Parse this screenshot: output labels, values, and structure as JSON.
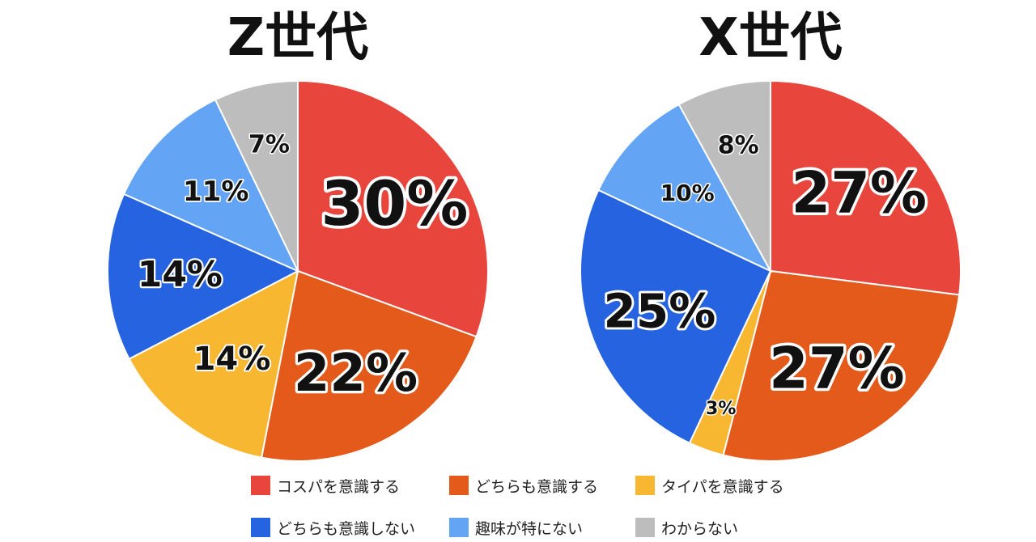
{
  "chart_data": [
    {
      "type": "pie",
      "title": "Z世代",
      "categories": [
        "コスパを意識する",
        "どちらも意識する",
        "タイパを意識する",
        "どちらも意識しない",
        "趣味が特にない",
        "わからない"
      ],
      "values": [
        30,
        22,
        14,
        14,
        11,
        7
      ],
      "labels": [
        "30%",
        "22%",
        "14%",
        "14%",
        "11%",
        "7%"
      ]
    },
    {
      "type": "pie",
      "title": "X世代",
      "categories": [
        "コスパを意識する",
        "どちらも意識する",
        "タイパを意識する",
        "どちらも意識しない",
        "趣味が特にない",
        "わからない"
      ],
      "values": [
        27,
        27,
        3,
        25,
        10,
        8
      ],
      "labels": [
        "27%",
        "27%",
        "3%",
        "25%",
        "10%",
        "8%"
      ]
    }
  ],
  "legend": {
    "items": [
      {
        "label": "コスパを意識する",
        "color": "#e8453c"
      },
      {
        "label": "どちらも意識する",
        "color": "#e35a1a"
      },
      {
        "label": "タイパを意識する",
        "color": "#f7b731"
      },
      {
        "label": "どちらも意識しない",
        "color": "#2563e0"
      },
      {
        "label": "趣味が特にない",
        "color": "#63a4f5"
      },
      {
        "label": "わからない",
        "color": "#bdbdbd"
      }
    ]
  }
}
